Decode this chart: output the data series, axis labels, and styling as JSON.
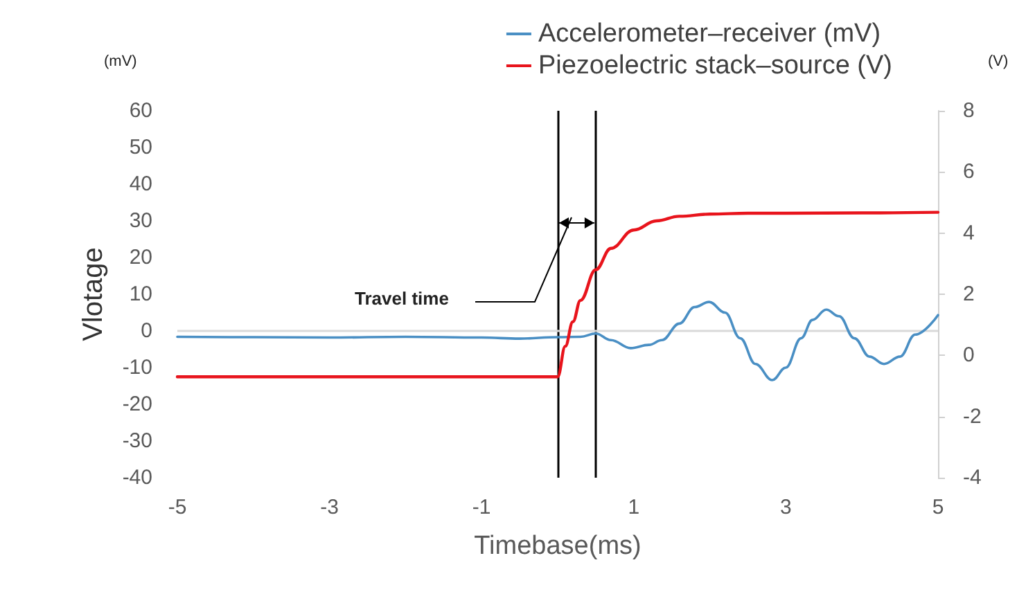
{
  "chart_data": {
    "type": "line",
    "xlabel": "Timebase(ms)",
    "ylabel": "Vlotage",
    "annotations": [
      "Travel time",
      "(mV)",
      "(V)"
    ],
    "xlim": [
      -5,
      5
    ],
    "xticks": [
      -5,
      -3,
      -1,
      1,
      3,
      5
    ],
    "ylim": [
      -40,
      60
    ],
    "yticks": [
      -40,
      -30,
      -20,
      -10,
      0,
      10,
      20,
      30,
      40,
      50,
      60
    ],
    "y2lim": [
      -4,
      8
    ],
    "y2ticks": [
      -4,
      -2,
      0,
      2,
      4,
      6,
      8
    ],
    "legend": "top right",
    "grid": false,
    "ref_lines": [
      {
        "axis": "x",
        "value": 0,
        "label": null,
        "color": "#000000"
      },
      {
        "axis": "x",
        "value": 0.5,
        "label": null,
        "color": "#000000"
      },
      {
        "axis": "y",
        "value": 0,
        "label": null,
        "color": "#d9d9d9"
      }
    ],
    "series": [
      {
        "name": "Accelerometer–receiver (mV)",
        "color": "#4a8fc4",
        "x": [
          -5,
          -4,
          -3,
          -2,
          -1,
          -0.5,
          0,
          0.3,
          0.5,
          0.7,
          0.96,
          1.2,
          1.37,
          1.6,
          1.8,
          1.99,
          2.2,
          2.4,
          2.6,
          2.82,
          3.0,
          3.2,
          3.35,
          3.53,
          3.7,
          3.9,
          4.1,
          4.29,
          4.5,
          4.7,
          5
        ],
        "values": [
          -1.6,
          -1.7,
          -1.8,
          -1.6,
          -1.8,
          -2.1,
          -1.7,
          -1.6,
          -0.7,
          -2.5,
          -4.7,
          -3.8,
          -2.5,
          2,
          6.5,
          7.9,
          5,
          -2,
          -9,
          -13.4,
          -10,
          -2,
          3,
          5.8,
          4,
          -2,
          -7,
          -9,
          -7,
          -1,
          4.3
        ]
      },
      {
        "name": "Piezoelectric stack–source (V)",
        "color": "#e8141c",
        "axis": "y2",
        "x": [
          -5,
          -4,
          -3,
          -2,
          -1,
          0,
          0.1,
          0.2,
          0.3,
          0.5,
          0.7,
          1,
          1.3,
          1.6,
          2,
          2.5,
          3,
          4,
          5
        ],
        "values": [
          -0.7,
          -0.7,
          -0.7,
          -0.7,
          -0.7,
          -0.7,
          0.3,
          1.1,
          1.8,
          2.8,
          3.5,
          4.1,
          4.4,
          4.55,
          4.62,
          4.65,
          4.65,
          4.66,
          4.68
        ]
      }
    ]
  }
}
